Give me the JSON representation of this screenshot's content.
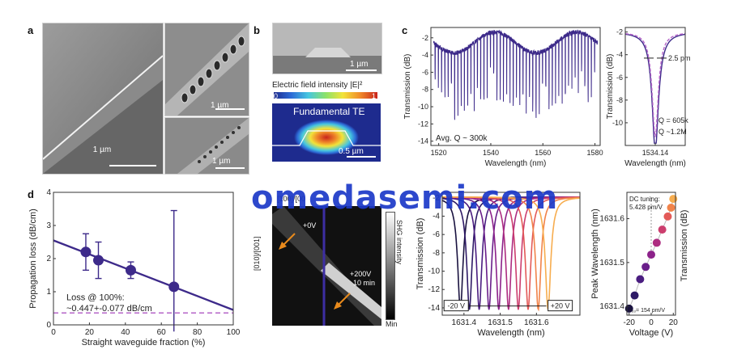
{
  "panel_labels": {
    "a": "a",
    "b": "b",
    "c": "c",
    "d": "d"
  },
  "panel_a": {
    "scalebar_main": "1 µm",
    "scalebar_top_right": "1 µm",
    "scalebar_bottom_right": "1 µm"
  },
  "panel_b": {
    "scalebar_sem": "1 µm",
    "field_title": "Electric field intensity |E|²",
    "colorbar_min": "0",
    "colorbar_max": "1",
    "mode_label": "Fundamental TE",
    "scalebar_mode": "0.5 µm"
  },
  "watermark": "omedasemi.com",
  "panel_e": {
    "axis_top_left": "[100]/[00",
    "axis_left": "[010]/[001]",
    "label_0v": "+0V",
    "label_200v": "+200V",
    "label_time": "10 min",
    "colorbar_label": "SHG intensity",
    "colorbar_min": "Min"
  },
  "chart_data": [
    {
      "type": "line",
      "title": "",
      "xlabel": "Wavelength (nm)",
      "ylabel": "Transmission (dB)",
      "xlim": [
        1517,
        1582
      ],
      "ylim": [
        -14.5,
        -0.8
      ],
      "xticks": [
        "1520",
        "1540",
        "1560",
        "1580"
      ],
      "yticks": [
        "-2",
        "-4",
        "-6",
        "-8",
        "-10",
        "-12",
        "-14"
      ],
      "annotation": "Avg. Q ~ 300k",
      "series": [
        {
          "color": "#3d2a8a"
        }
      ]
    },
    {
      "type": "line",
      "title": "",
      "xlabel": "Wavelength (nm)",
      "ylabel": "Transmission (dB)",
      "xlim": [
        1534.13,
        1534.15
      ],
      "ylim": [
        -12,
        -1.6
      ],
      "xticks": [
        "1534.14"
      ],
      "yticks": [
        "-2",
        "-4",
        "-6",
        "-8",
        "-10"
      ],
      "linewidth_label": "2.5 pm",
      "q_labels": [
        "Q = 605k",
        "Q ~1.2M"
      ],
      "series": [
        {
          "style": "measured",
          "color": "#3d2a8a"
        },
        {
          "style": "fit",
          "color": "#b564c8"
        }
      ]
    },
    {
      "type": "scatter",
      "title": "",
      "xlabel": "Straight waveguide fraction (%)",
      "ylabel": "Propagation loss (dB/cm)",
      "xlim": [
        0,
        100
      ],
      "ylim": [
        0,
        4
      ],
      "xticks": [
        "0",
        "20",
        "40",
        "60",
        "80",
        "100"
      ],
      "yticks": [
        "0",
        "1",
        "2",
        "3",
        "4"
      ],
      "points": [
        {
          "x": 18,
          "y": 2.2,
          "err": 0.55
        },
        {
          "x": 25,
          "y": 1.95,
          "err": 0.55
        },
        {
          "x": 43,
          "y": 1.65,
          "err": 0.25
        },
        {
          "x": 67,
          "y": 1.15,
          "err": 2.3
        }
      ],
      "fit_line": {
        "x": [
          0,
          100
        ],
        "y": [
          2.55,
          0.45
        ]
      },
      "reference_line": {
        "y": 0.36
      },
      "annotation_line1": "Loss @ 100%:",
      "annotation_line2": "~0.447+-0.077 dB/cm"
    },
    {
      "type": "line",
      "title": "",
      "xlabel": "Wavelength (nm)",
      "ylabel": "Transmission (dB)",
      "xlim": [
        1631.34,
        1631.72
      ],
      "ylim": [
        -14.8,
        -1.4
      ],
      "xticks": [
        "1631.4",
        "1631.5",
        "1631.6"
      ],
      "yticks": [
        "-2",
        "-4",
        "-6",
        "-8",
        "-10",
        "-12",
        "-14"
      ],
      "range_start": "-20 V",
      "range_end": "+20 V",
      "resonances_nm": [
        1631.39,
        1631.415,
        1631.442,
        1631.469,
        1631.496,
        1631.523,
        1631.55,
        1631.577,
        1631.605,
        1631.632
      ],
      "colors": [
        "#1a1340",
        "#2e1a66",
        "#4a1d80",
        "#6a1f8a",
        "#8c228a",
        "#ad2c80",
        "#cc3e6e",
        "#e35a58",
        "#f1834a",
        "#f7ad4f"
      ]
    },
    {
      "type": "scatter",
      "title": "",
      "xlabel": "Voltage (V)",
      "ylabel": "Peak Wavelength (nm)",
      "right_label": "Transmission (dB)",
      "xlim": [
        -22,
        22
      ],
      "ylim": [
        1631.38,
        1631.66
      ],
      "xticks": [
        "-20",
        "0",
        "20"
      ],
      "yticks": [
        "1631.4",
        "1631.5",
        "1631.6"
      ],
      "points": [
        {
          "x": -20,
          "y": 1631.395
        },
        {
          "x": -15,
          "y": 1631.425
        },
        {
          "x": -10,
          "y": 1631.462
        },
        {
          "x": -5,
          "y": 1631.49
        },
        {
          "x": 0,
          "y": 1631.518
        },
        {
          "x": 5,
          "y": 1631.545
        },
        {
          "x": 10,
          "y": 1631.575
        },
        {
          "x": 15,
          "y": 1631.605
        },
        {
          "x": 18,
          "y": 1631.625
        },
        {
          "x": 20,
          "y": 1631.645
        }
      ],
      "point_colors": [
        "#1a1340",
        "#2e1a66",
        "#4a1d80",
        "#6a1f8a",
        "#8c228a",
        "#ad2c80",
        "#cc3e6e",
        "#e35a58",
        "#f1834a",
        "#f7ad4f"
      ],
      "tuning_title": "DC tuning:",
      "tuning_value": "5.428 pm/V",
      "r33_label": "r₃₃= 154 pm/V"
    }
  ]
}
